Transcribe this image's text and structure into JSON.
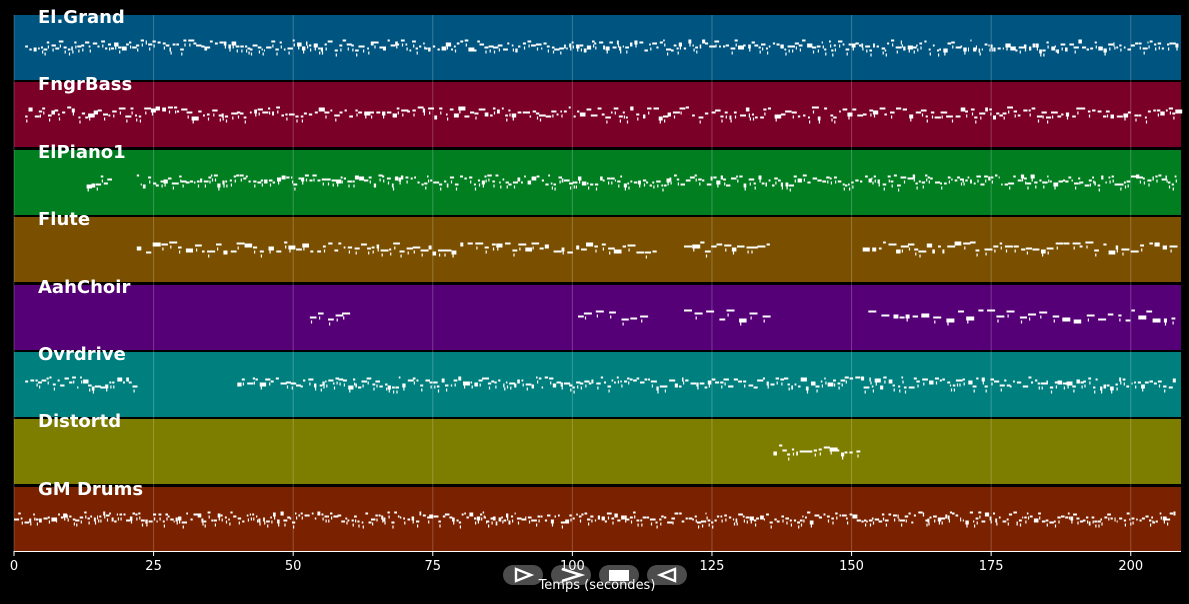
{
  "app": {
    "x_axis_label": "Temps (secondes)"
  },
  "timeline": {
    "xlim": [
      0,
      209
    ],
    "ticks": [
      "0",
      "25",
      "50",
      "75",
      "100",
      "125",
      "150",
      "175",
      "200"
    ],
    "tick_values": [
      0,
      25,
      50,
      75,
      100,
      125,
      150,
      175,
      200
    ],
    "grid": true
  },
  "tracks": [
    {
      "name": "El.Grand",
      "color": "#005580",
      "segments": [
        [
          2,
          208
        ]
      ],
      "density": 0.9
    },
    {
      "name": "FngrBass",
      "color": "#7a0028",
      "segments": [
        [
          2,
          208
        ]
      ],
      "density": 0.7
    },
    {
      "name": "ElPiano1",
      "color": "#007e20",
      "segments": [
        [
          13,
          17
        ],
        [
          22,
          208
        ]
      ],
      "density": 0.9
    },
    {
      "name": "Flute",
      "color": "#7a5000",
      "segments": [
        [
          22,
          115
        ],
        [
          120,
          135
        ],
        [
          152,
          208
        ]
      ],
      "density": 0.5
    },
    {
      "name": "AahChoir",
      "color": "#560078",
      "segments": [
        [
          53,
          60
        ],
        [
          101,
          113
        ],
        [
          120,
          135
        ],
        [
          153,
          208
        ]
      ],
      "density": 0.35
    },
    {
      "name": "Ovrdrive",
      "color": "#007f7f",
      "segments": [
        [
          2,
          22
        ],
        [
          40,
          208
        ]
      ],
      "density": 0.8
    },
    {
      "name": "Distortd",
      "color": "#7d7d00",
      "segments": [
        [
          136,
          151
        ]
      ],
      "density": 0.6
    },
    {
      "name": "GM Drums",
      "color": "#7a2100",
      "segments": [
        [
          0,
          208
        ]
      ],
      "density": 1.0
    }
  ],
  "controls": [
    {
      "name": "play",
      "icon": "play-outline-icon"
    },
    {
      "name": "forward",
      "icon": "forward-chevron-icon"
    },
    {
      "name": "stop",
      "icon": "stop-square-icon"
    },
    {
      "name": "back",
      "icon": "back-outline-icon"
    }
  ]
}
